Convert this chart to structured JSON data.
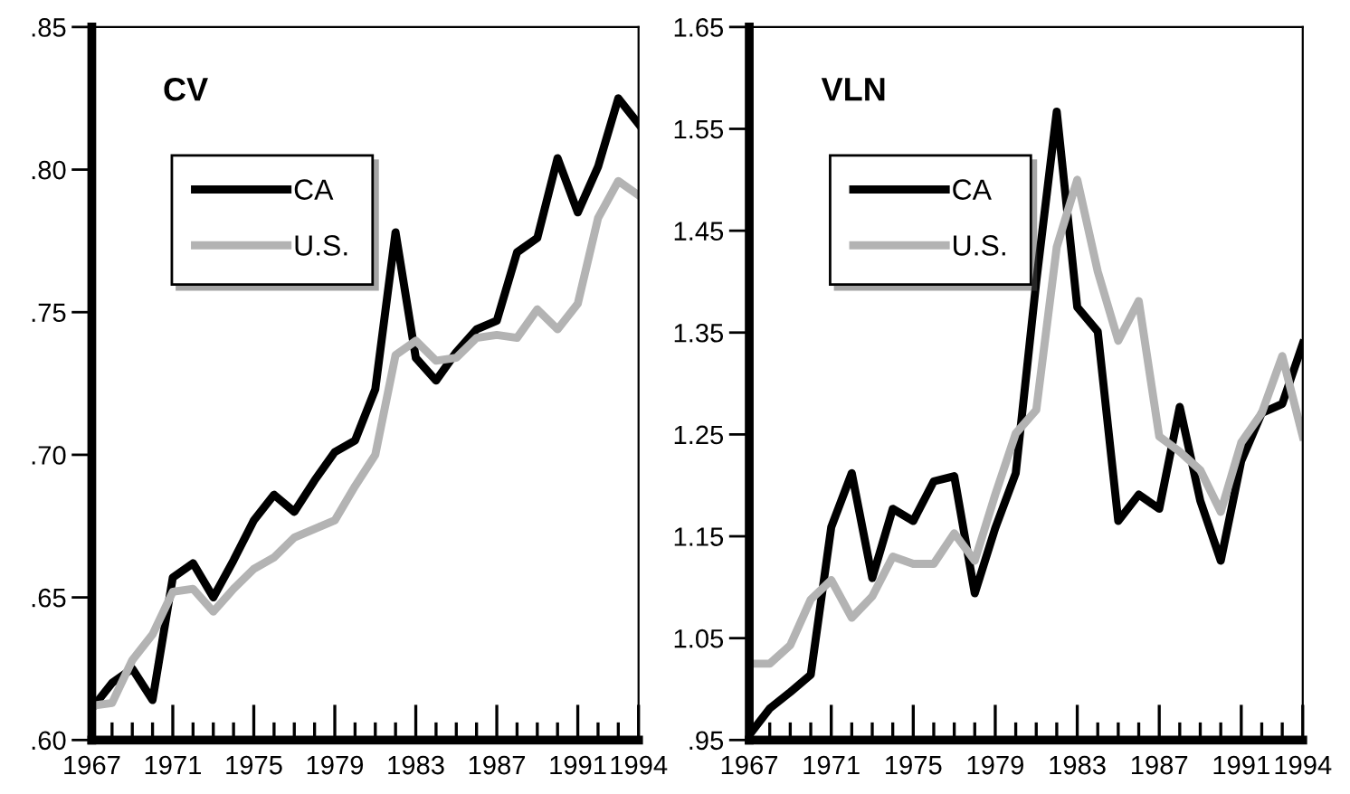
{
  "chart_data": [
    {
      "type": "line",
      "title": "CV",
      "x": [
        1967,
        1968,
        1969,
        1970,
        1971,
        1972,
        1973,
        1974,
        1975,
        1976,
        1977,
        1978,
        1979,
        1980,
        1981,
        1982,
        1983,
        1984,
        1985,
        1986,
        1987,
        1988,
        1989,
        1990,
        1991,
        1992,
        1993,
        1994
      ],
      "series": [
        {
          "name": "CA",
          "color": "#000000",
          "values": [
            0.611,
            0.62,
            0.625,
            0.614,
            0.657,
            0.662,
            0.65,
            0.663,
            0.677,
            0.686,
            0.68,
            0.691,
            0.701,
            0.705,
            0.723,
            0.778,
            0.734,
            0.726,
            0.736,
            0.744,
            0.747,
            0.771,
            0.776,
            0.804,
            0.785,
            0.801,
            0.825,
            0.816
          ]
        },
        {
          "name": "U.S.",
          "color": "#b3b3b3",
          "values": [
            0.612,
            0.613,
            0.628,
            0.637,
            0.652,
            0.653,
            0.645,
            0.653,
            0.66,
            0.664,
            0.671,
            0.674,
            0.677,
            0.689,
            0.7,
            0.735,
            0.74,
            0.733,
            0.734,
            0.741,
            0.742,
            0.741,
            0.751,
            0.744,
            0.753,
            0.783,
            0.796,
            0.791
          ]
        }
      ],
      "xlim": [
        1967,
        1994
      ],
      "xticks": [
        1967,
        1971,
        1975,
        1979,
        1983,
        1987,
        1991,
        1994
      ],
      "ylim": [
        0.6,
        0.85
      ],
      "yticks": [
        {
          "value": 0.6,
          "label": ".60"
        },
        {
          "value": 0.65,
          "label": ".65"
        },
        {
          "value": 0.7,
          "label": ".70"
        },
        {
          "value": 0.75,
          "label": ".75"
        },
        {
          "value": 0.8,
          "label": ".80"
        },
        {
          "value": 0.85,
          "label": ".85"
        }
      ],
      "legend": "top left",
      "grid": false,
      "marker": "none",
      "line_style": "solid"
    },
    {
      "type": "line",
      "title": "VLN",
      "x": [
        1967,
        1968,
        1969,
        1970,
        1971,
        1972,
        1973,
        1974,
        1975,
        1976,
        1977,
        1978,
        1979,
        1980,
        1981,
        1982,
        1983,
        1984,
        1985,
        1986,
        1987,
        1988,
        1989,
        1990,
        1991,
        1992,
        1993,
        1994
      ],
      "series": [
        {
          "name": "CA",
          "color": "#000000",
          "values": [
            0.955,
            0.981,
            0.997,
            1.014,
            1.159,
            1.212,
            1.109,
            1.177,
            1.165,
            1.204,
            1.209,
            1.094,
            1.158,
            1.212,
            1.4,
            1.567,
            1.375,
            1.351,
            1.165,
            1.191,
            1.177,
            1.277,
            1.185,
            1.126,
            1.224,
            1.271,
            1.28,
            1.339
          ]
        },
        {
          "name": "U.S.",
          "color": "#b3b3b3",
          "values": [
            1.025,
            1.025,
            1.043,
            1.088,
            1.107,
            1.07,
            1.091,
            1.13,
            1.123,
            1.123,
            1.153,
            1.126,
            1.191,
            1.251,
            1.274,
            1.434,
            1.5,
            1.41,
            1.342,
            1.381,
            1.248,
            1.233,
            1.215,
            1.174,
            1.242,
            1.271,
            1.327,
            1.248
          ]
        }
      ],
      "xlim": [
        1967,
        1994
      ],
      "xticks": [
        1967,
        1971,
        1975,
        1979,
        1983,
        1987,
        1991,
        1994
      ],
      "ylim": [
        0.95,
        1.65
      ],
      "yticks": [
        {
          "value": 0.95,
          "label": ".95"
        },
        1.05,
        1.15,
        1.25,
        1.35,
        1.45,
        1.55,
        1.65
      ],
      "legend": "top left",
      "grid": false,
      "marker": "none",
      "line_style": "solid"
    }
  ]
}
